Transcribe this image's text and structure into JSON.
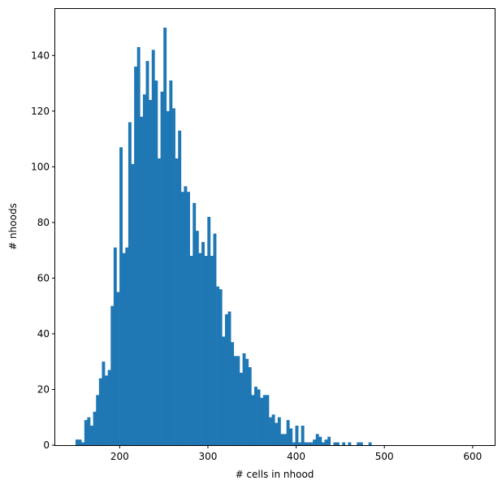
{
  "chart_data": {
    "type": "bar",
    "subtype": "histogram",
    "title": "",
    "xlabel": "# cells in nhood",
    "ylabel": "# nhoods",
    "xlim": [
      127,
      625
    ],
    "ylim": [
      0,
      157
    ],
    "xticks": [
      200,
      300,
      400,
      500,
      600
    ],
    "yticks": [
      0,
      20,
      40,
      60,
      80,
      100,
      120,
      140
    ],
    "bin_start": 150,
    "bin_width": 3.32,
    "bar_color": "#1f77b4",
    "grid": false,
    "legend": "none",
    "values": [
      2,
      2,
      1,
      9,
      10,
      7,
      12,
      18,
      24,
      30,
      25,
      27,
      50,
      71,
      55,
      107,
      69,
      71,
      116,
      101,
      136,
      143,
      118,
      126,
      138,
      124,
      142,
      131,
      103,
      127,
      150,
      120,
      131,
      121,
      103,
      113,
      91,
      93,
      91,
      68,
      87,
      77,
      69,
      73,
      68,
      82,
      68,
      76,
      57,
      56,
      39,
      47,
      48,
      37,
      32,
      32,
      26,
      33,
      31,
      28,
      18,
      21,
      20,
      17,
      18,
      18,
      10,
      11,
      8,
      10,
      4,
      4,
      9,
      6,
      1,
      7,
      1,
      7,
      1,
      1,
      1,
      2,
      4,
      3,
      1,
      2,
      3,
      0,
      1,
      1,
      0,
      1,
      0,
      1,
      0,
      0,
      1,
      1,
      0,
      0,
      1
    ]
  }
}
